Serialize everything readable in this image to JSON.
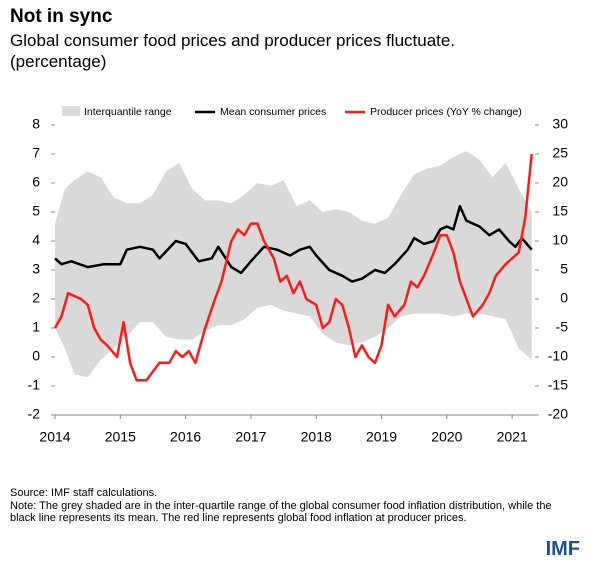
{
  "chart_data": {
    "type": "line",
    "title": "Not in sync",
    "subtitle": "Global consumer food prices and producer prices fluctuate.",
    "subtitle2": "(percentage)",
    "source": "Source: IMF staff calculations.",
    "note": "Note: The grey shaded are in the inter-quartile range of the global consumer food inflation distribution, while the black line represents its mean. The red line represents global food inflation at producer prices.",
    "logo": "IMF",
    "xlim": [
      2014,
      2021.35
    ],
    "xticks": [
      2014,
      2015,
      2016,
      2017,
      2018,
      2019,
      2020,
      2021
    ],
    "ylim": [
      -2,
      8
    ],
    "yticks": [
      -2,
      -1,
      0,
      1,
      2,
      3,
      4,
      5,
      6,
      7,
      8
    ],
    "y2lim": [
      -20,
      30
    ],
    "y2ticks": [
      -20,
      -15,
      -10,
      -5,
      0,
      5,
      10,
      15,
      20,
      25,
      30
    ],
    "grid": false,
    "band": {
      "name": "Interquantile range",
      "color": "#d9d9d9",
      "x": [
        2014,
        2014.15,
        2014.3,
        2014.5,
        2014.7,
        2014.9,
        2015.1,
        2015.3,
        2015.5,
        2015.7,
        2015.9,
        2016.1,
        2016.3,
        2016.5,
        2016.7,
        2016.9,
        2017.1,
        2017.3,
        2017.5,
        2017.7,
        2017.9,
        2018.1,
        2018.3,
        2018.5,
        2018.7,
        2018.9,
        2019.1,
        2019.3,
        2019.5,
        2019.7,
        2019.9,
        2020.1,
        2020.3,
        2020.5,
        2020.7,
        2020.9,
        2021.1,
        2021.3
      ],
      "upper": [
        4.6,
        5.8,
        6.1,
        6.4,
        6.2,
        5.5,
        5.3,
        5.3,
        5.6,
        6.4,
        6.7,
        5.8,
        5.4,
        5.4,
        5.3,
        5.6,
        6.0,
        5.9,
        6.1,
        5.2,
        5.4,
        5.0,
        5.1,
        5.0,
        4.7,
        4.6,
        4.8,
        5.6,
        6.3,
        6.5,
        6.6,
        6.9,
        7.1,
        6.8,
        6.2,
        6.7,
        5.8,
        5.0
      ],
      "lower": [
        1.0,
        0.3,
        -0.6,
        -0.7,
        -0.1,
        0.3,
        0.7,
        1.2,
        1.2,
        0.7,
        0.6,
        0.6,
        0.9,
        1.1,
        1.1,
        1.3,
        1.7,
        1.8,
        1.6,
        1.5,
        1.4,
        0.8,
        0.5,
        0.4,
        0.5,
        0.7,
        1.0,
        1.4,
        1.5,
        1.5,
        1.5,
        1.4,
        1.5,
        1.5,
        1.4,
        1.3,
        0.3,
        -0.1
      ]
    },
    "series": [
      {
        "name": "Mean consumer prices",
        "color": "#000000",
        "x": [
          2014,
          2014.1,
          2014.25,
          2014.5,
          2014.75,
          2015,
          2015.1,
          2015.3,
          2015.5,
          2015.6,
          2015.85,
          2016,
          2016.2,
          2016.4,
          2016.5,
          2016.7,
          2016.85,
          2017,
          2017.2,
          2017.4,
          2017.6,
          2017.75,
          2017.9,
          2018,
          2018.2,
          2018.4,
          2018.55,
          2018.7,
          2018.9,
          2019.05,
          2019.2,
          2019.4,
          2019.5,
          2019.65,
          2019.8,
          2019.9,
          2020,
          2020.1,
          2020.2,
          2020.3,
          2020.5,
          2020.65,
          2020.8,
          2020.95,
          2021.05,
          2021.15,
          2021.3
        ],
        "values": [
          3.4,
          3.2,
          3.3,
          3.1,
          3.2,
          3.2,
          3.7,
          3.8,
          3.7,
          3.4,
          4.0,
          3.9,
          3.3,
          3.4,
          3.8,
          3.1,
          2.9,
          3.3,
          3.8,
          3.7,
          3.5,
          3.7,
          3.8,
          3.5,
          3.0,
          2.8,
          2.6,
          2.7,
          3.0,
          2.9,
          3.2,
          3.7,
          4.1,
          3.9,
          4.0,
          4.4,
          4.5,
          4.4,
          5.2,
          4.7,
          4.5,
          4.2,
          4.4,
          4.0,
          3.8,
          4.1,
          3.7
        ]
      },
      {
        "name": "Producer prices (YoY % change)",
        "color": "#ff1a1a",
        "axis": "y2",
        "x": [
          2014,
          2014.1,
          2014.2,
          2014.3,
          2014.4,
          2014.5,
          2014.6,
          2014.7,
          2014.8,
          2014.95,
          2015.05,
          2015.15,
          2015.25,
          2015.4,
          2015.6,
          2015.75,
          2015.85,
          2015.95,
          2016.05,
          2016.15,
          2016.3,
          2016.45,
          2016.55,
          2016.7,
          2016.8,
          2016.9,
          2017,
          2017.1,
          2017.2,
          2017.35,
          2017.45,
          2017.55,
          2017.65,
          2017.75,
          2017.85,
          2018,
          2018.1,
          2018.2,
          2018.3,
          2018.4,
          2018.5,
          2018.6,
          2018.7,
          2018.8,
          2018.9,
          2019,
          2019.1,
          2019.2,
          2019.35,
          2019.45,
          2019.55,
          2019.65,
          2019.8,
          2019.9,
          2020,
          2020.1,
          2020.2,
          2020.3,
          2020.4,
          2020.55,
          2020.65,
          2020.75,
          2020.9,
          2021,
          2021.1,
          2021.2,
          2021.3
        ],
        "values": [
          -5,
          -3,
          1,
          0.5,
          0,
          -1,
          -5,
          -7,
          -8,
          -10,
          -4,
          -11,
          -14,
          -14,
          -11,
          -11,
          -9,
          -10,
          -9,
          -11,
          -5,
          0,
          3,
          10,
          12,
          11,
          13,
          13,
          10,
          7,
          3,
          4,
          1,
          3,
          0,
          -1,
          -5,
          -4,
          0,
          -1,
          -5,
          -10,
          -8,
          -10,
          -11,
          -8,
          -1,
          -3,
          -1,
          3,
          2,
          4,
          8,
          11,
          11,
          8,
          3,
          0,
          -3,
          -1,
          1,
          4,
          6,
          7,
          8,
          14,
          25
        ]
      }
    ]
  }
}
